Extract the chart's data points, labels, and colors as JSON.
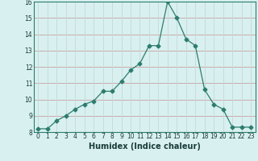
{
  "x": [
    0,
    1,
    2,
    3,
    4,
    5,
    6,
    7,
    8,
    9,
    10,
    11,
    12,
    13,
    14,
    15,
    16,
    17,
    18,
    19,
    20,
    21,
    22,
    23
  ],
  "y": [
    8.2,
    8.2,
    8.7,
    9.0,
    9.4,
    9.7,
    9.9,
    10.5,
    10.5,
    11.1,
    11.8,
    12.2,
    13.3,
    13.3,
    16.0,
    15.0,
    13.7,
    13.3,
    10.6,
    9.7,
    9.4,
    8.3,
    8.3,
    8.3
  ],
  "line_color": "#2d7d6e",
  "marker": "D",
  "marker_size": 2.5,
  "bg_color": "#d8f0f0",
  "grid_color_h": "#c8a0a0",
  "grid_color_v": "#c8d8d8",
  "xlabel": "Humidex (Indice chaleur)",
  "xlim": [
    -0.5,
    23.5
  ],
  "ylim": [
    8,
    16
  ],
  "yticks": [
    8,
    9,
    10,
    11,
    12,
    13,
    14,
    15,
    16
  ],
  "xticks": [
    0,
    1,
    2,
    3,
    4,
    5,
    6,
    7,
    8,
    9,
    10,
    11,
    12,
    13,
    14,
    15,
    16,
    17,
    18,
    19,
    20,
    21,
    22,
    23
  ],
  "tick_fontsize": 5.5,
  "xlabel_fontsize": 7
}
